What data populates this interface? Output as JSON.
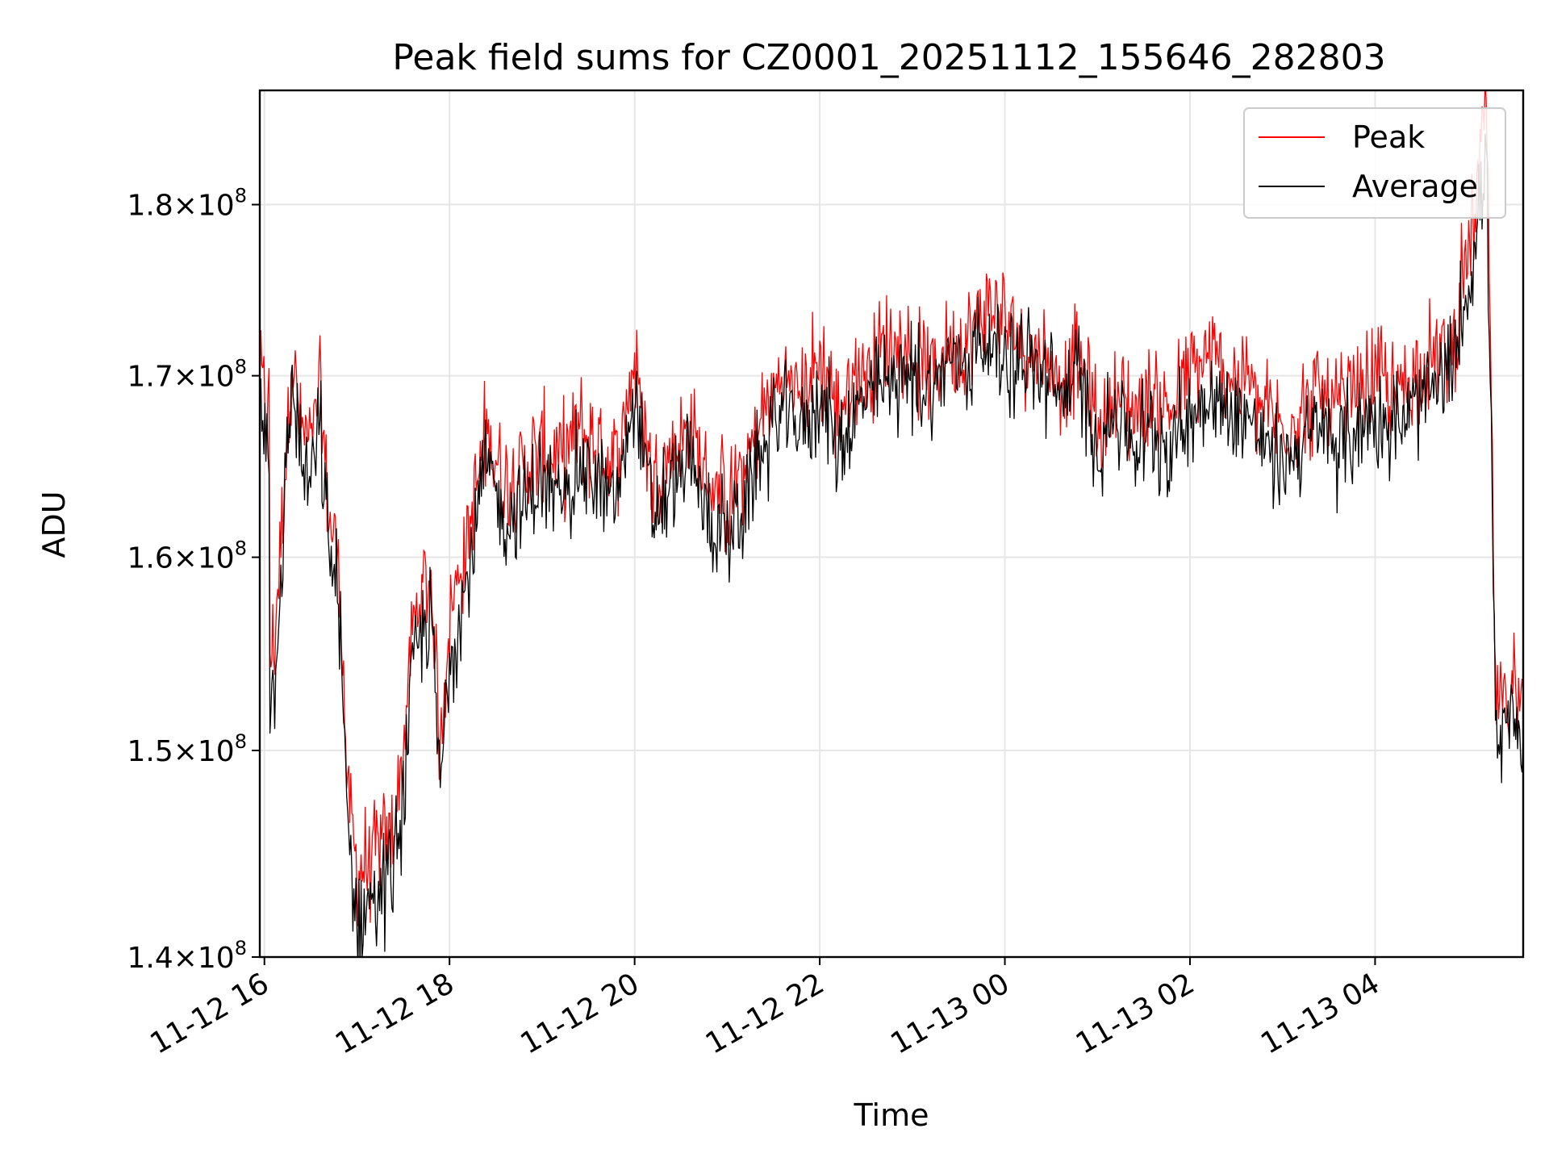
{
  "chart_data": {
    "type": "line",
    "title": "Peak field sums for CZ0001_20251112_155646_282803",
    "xlabel": "Time",
    "ylabel": "ADU",
    "yscale": "log",
    "ylim": [
      140000000,
      187000000
    ],
    "xlim_hours": [
      -0.05,
      13.6
    ],
    "x_ticks": [
      {
        "hour": 0,
        "label": "11-12 16"
      },
      {
        "hour": 2,
        "label": "11-12 18"
      },
      {
        "hour": 4,
        "label": "11-12 20"
      },
      {
        "hour": 6,
        "label": "11-12 22"
      },
      {
        "hour": 8,
        "label": "11-13 00"
      },
      {
        "hour": 10,
        "label": "11-13 02"
      },
      {
        "hour": 12,
        "label": "11-13 04"
      }
    ],
    "y_ticks": [
      {
        "value": 140000000,
        "mantissa": "1.4",
        "exp": "8"
      },
      {
        "value": 150000000,
        "mantissa": "1.5",
        "exp": "8"
      },
      {
        "value": 160000000,
        "mantissa": "1.6",
        "exp": "8"
      },
      {
        "value": 170000000,
        "mantissa": "1.7",
        "exp": "8"
      },
      {
        "value": 180000000,
        "mantissa": "1.8",
        "exp": "8"
      }
    ],
    "grid": true,
    "legend_position": "top-right",
    "series": [
      {
        "name": "Peak",
        "color": "#ff0000",
        "x_hours": [
          -0.05,
          0.05,
          0.1,
          0.2,
          0.3,
          0.4,
          0.5,
          0.6,
          0.7,
          0.8,
          0.9,
          1.0,
          1.2,
          1.4,
          1.5,
          1.6,
          1.7,
          1.8,
          1.9,
          2.0,
          2.2,
          2.4,
          2.6,
          2.8,
          3.0,
          3.2,
          3.4,
          3.6,
          3.8,
          4.0,
          4.2,
          4.4,
          4.6,
          4.8,
          5.0,
          5.2,
          5.4,
          5.6,
          5.8,
          6.0,
          6.2,
          6.4,
          6.6,
          6.8,
          7.0,
          7.2,
          7.4,
          7.6,
          7.8,
          8.0,
          8.2,
          8.4,
          8.6,
          8.8,
          9.0,
          9.2,
          9.4,
          9.6,
          9.8,
          10.0,
          10.2,
          10.4,
          10.6,
          10.8,
          11.0,
          11.2,
          11.4,
          11.6,
          11.8,
          12.0,
          12.2,
          12.4,
          12.6,
          12.8,
          13.0,
          13.1,
          13.2,
          13.3,
          13.4,
          13.45,
          13.5,
          13.55,
          13.6
        ],
        "values": [
          170000000,
          168000000,
          155000000,
          163000000,
          171000000,
          167000000,
          166000000,
          169000000,
          162000000,
          160000000,
          148000000,
          144000000,
          145000000,
          146000000,
          150000000,
          156000000,
          158000000,
          159000000,
          150000000,
          157000000,
          161000000,
          167000000,
          164000000,
          165000000,
          166000000,
          165000000,
          167000000,
          166000000,
          165000000,
          171000000,
          164000000,
          166000000,
          167000000,
          164000000,
          163000000,
          165000000,
          168000000,
          170000000,
          169000000,
          171000000,
          168000000,
          170000000,
          171000000,
          172000000,
          171000000,
          170000000,
          172000000,
          172000000,
          174000000,
          173000000,
          172000000,
          171000000,
          170000000,
          171000000,
          167000000,
          169000000,
          168000000,
          169000000,
          168000000,
          170000000,
          171000000,
          170000000,
          170000000,
          168000000,
          167000000,
          168000000,
          169000000,
          168000000,
          169000000,
          170000000,
          169000000,
          170000000,
          171000000,
          171000000,
          177000000,
          180000000,
          187000000,
          153000000,
          152000000,
          153000000,
          154000000,
          152000000,
          153000000
        ]
      },
      {
        "name": "Average",
        "color": "#000000",
        "x_hours": [
          -0.05,
          0.05,
          0.1,
          0.2,
          0.3,
          0.4,
          0.5,
          0.6,
          0.7,
          0.8,
          0.9,
          1.0,
          1.2,
          1.4,
          1.5,
          1.6,
          1.7,
          1.8,
          1.9,
          2.0,
          2.2,
          2.4,
          2.6,
          2.8,
          3.0,
          3.2,
          3.4,
          3.6,
          3.8,
          4.0,
          4.2,
          4.4,
          4.6,
          4.8,
          5.0,
          5.2,
          5.4,
          5.6,
          5.8,
          6.0,
          6.2,
          6.4,
          6.6,
          6.8,
          7.0,
          7.2,
          7.4,
          7.6,
          7.8,
          8.0,
          8.2,
          8.4,
          8.6,
          8.8,
          9.0,
          9.2,
          9.4,
          9.6,
          9.8,
          10.0,
          10.2,
          10.4,
          10.6,
          10.8,
          11.0,
          11.2,
          11.4,
          11.6,
          11.8,
          12.0,
          12.2,
          12.4,
          12.6,
          12.8,
          13.0,
          13.1,
          13.2,
          13.3,
          13.4,
          13.45,
          13.5,
          13.55,
          13.6
        ],
        "values": [
          169000000,
          167000000,
          153000000,
          161000000,
          170000000,
          165000000,
          164000000,
          167000000,
          160000000,
          158000000,
          146000000,
          142000000,
          143000000,
          144000000,
          148000000,
          154000000,
          156000000,
          157000000,
          148000000,
          155000000,
          159000000,
          165000000,
          162000000,
          163000000,
          164000000,
          163000000,
          165000000,
          164000000,
          163000000,
          169000000,
          162000000,
          164000000,
          165000000,
          162000000,
          161000000,
          163000000,
          166000000,
          168000000,
          167000000,
          169000000,
          166000000,
          168000000,
          169000000,
          170000000,
          170000000,
          169000000,
          171000000,
          171000000,
          172000000,
          171000000,
          171000000,
          170000000,
          169000000,
          170000000,
          166000000,
          168000000,
          166000000,
          167000000,
          166000000,
          168000000,
          169000000,
          168000000,
          168000000,
          166000000,
          165000000,
          166000000,
          167000000,
          166000000,
          167000000,
          168000000,
          167000000,
          168000000,
          169000000,
          170000000,
          175000000,
          178000000,
          184000000,
          151000000,
          150000000,
          151000000,
          152000000,
          150000000,
          151000000
        ]
      }
    ]
  }
}
